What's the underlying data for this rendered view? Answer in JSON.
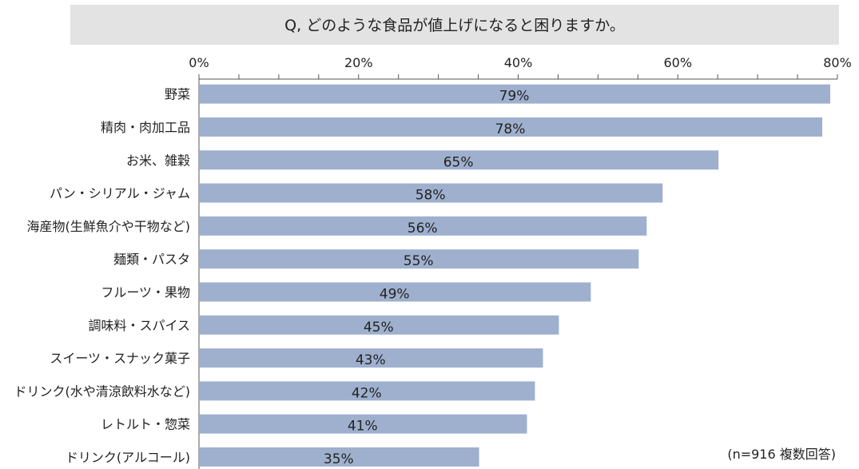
{
  "chart_data": {
    "type": "bar",
    "orientation": "horizontal",
    "title": "Q, どのような食品が値上げになると困りますか。",
    "categories": [
      "野菜",
      "精肉・肉加工品",
      "お米、雑穀",
      "パン・シリアル・ジャム",
      "海産物(生鮮魚介や干物など)",
      "麺類・パスタ",
      "フルーツ・果物",
      "調味料・スパイス",
      "スイーツ・スナック菓子",
      "ドリンク(水や清涼飲料水など)",
      "レトルト・惣菜",
      "ドリンク(アルコール)"
    ],
    "values": [
      79,
      78,
      65,
      58,
      56,
      55,
      49,
      45,
      43,
      42,
      41,
      35
    ],
    "value_labels": [
      "79%",
      "78%",
      "65%",
      "58%",
      "56%",
      "55%",
      "49%",
      "45%",
      "43%",
      "42%",
      "41%",
      "35%"
    ],
    "x_ticks": [
      "0%",
      "20%",
      "40%",
      "60%",
      "80%"
    ],
    "xlim": [
      0,
      80
    ],
    "note": "(n=916 複数回答)",
    "colors": {
      "bar": "#9fb0ce",
      "title_bg": "#e3e3e3",
      "axis": "#555555"
    }
  }
}
